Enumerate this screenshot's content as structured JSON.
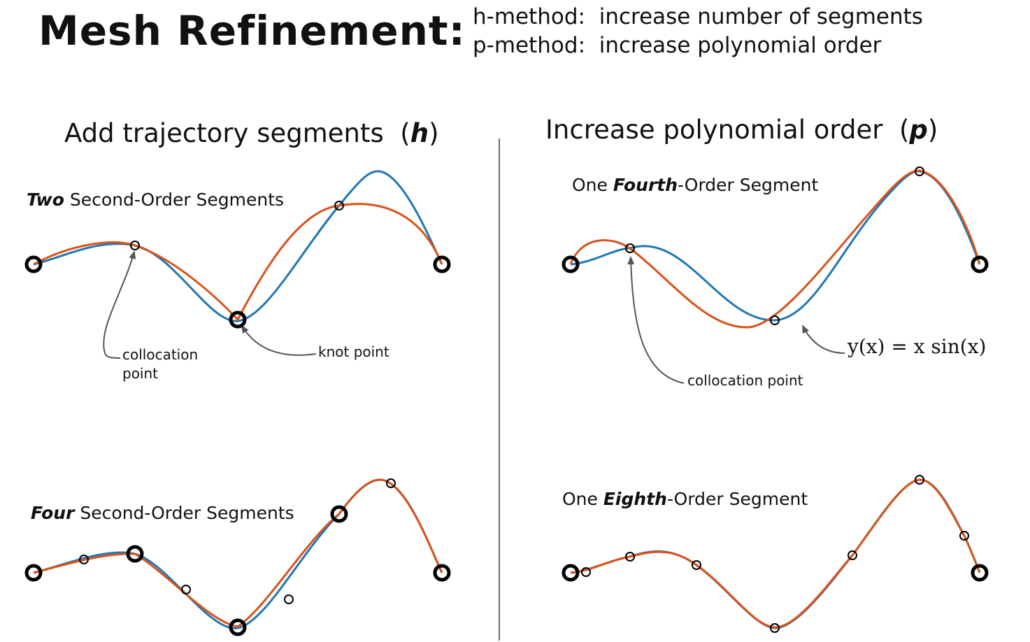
{
  "title": "Mesh Refinement:",
  "methods": {
    "h_line": "h-method:  increase number of segments",
    "p_line": "p-method:  increase polynomial order"
  },
  "left_column": {
    "heading_text": "Add trajectory segments  (",
    "heading_symbol": "h",
    "heading_close": ")",
    "top_panel": {
      "label_emph": "Two",
      "label_rest": " Second-Order Segments",
      "collocation_label": "collocation point",
      "knot_label": "knot point"
    },
    "bottom_panel": {
      "label_emph": "Four",
      "label_rest": " Second-Order Segments"
    }
  },
  "right_column": {
    "heading_text": "Increase polynomial order  (",
    "heading_symbol": "p",
    "heading_close": ")",
    "top_panel": {
      "label_pre": "One ",
      "label_emph": "Fourth",
      "label_rest": "-Order Segment",
      "collocation_label": "collocation point",
      "equation": "y(x) = x sin(x)"
    },
    "bottom_panel": {
      "label_pre": "One ",
      "label_emph": "Eighth",
      "label_rest": "-Order Segment"
    }
  },
  "colors": {
    "true_curve": "#1f77b4",
    "approximation": "#d95319",
    "point_outline": "#000000",
    "annotation_arrow": "#555555"
  }
}
